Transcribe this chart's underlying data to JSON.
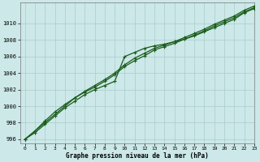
{
  "title": "Graphe pression niveau de la mer (hPa)",
  "background_color": "#cce8e8",
  "grid_color": "#aacccc",
  "line_color": "#1a5c1a",
  "marker_color": "#1a5c1a",
  "xlim": [
    -0.5,
    23
  ],
  "ylim": [
    995.5,
    1012.5
  ],
  "yticks": [
    996,
    998,
    1000,
    1002,
    1004,
    1006,
    1008,
    1010
  ],
  "xticks": [
    0,
    1,
    2,
    3,
    4,
    5,
    6,
    7,
    8,
    9,
    10,
    11,
    12,
    13,
    14,
    15,
    16,
    17,
    18,
    19,
    20,
    21,
    22,
    23
  ],
  "series": [
    [
      996.0,
      996.8,
      997.8,
      998.8,
      999.8,
      1000.6,
      1001.4,
      1002.0,
      1002.5,
      1003.0,
      1006.0,
      1006.5,
      1007.0,
      1007.3,
      1007.5,
      1007.8,
      1008.1,
      1008.5,
      1009.0,
      1009.5,
      1010.0,
      1010.5,
      1011.3,
      1011.8
    ],
    [
      996.0,
      997.0,
      998.2,
      999.3,
      1000.2,
      1001.0,
      1001.8,
      1002.5,
      1003.2,
      1004.0,
      1005.0,
      1005.8,
      1006.4,
      1007.0,
      1007.4,
      1007.8,
      1008.3,
      1008.8,
      1009.3,
      1009.9,
      1010.4,
      1010.9,
      1011.6,
      1012.1
    ],
    [
      996.0,
      997.0,
      998.0,
      999.0,
      1000.0,
      1001.0,
      1001.7,
      1002.3,
      1003.0,
      1003.8,
      1004.8,
      1005.5,
      1006.1,
      1006.8,
      1007.2,
      1007.6,
      1008.1,
      1008.6,
      1009.1,
      1009.7,
      1010.2,
      1010.7,
      1011.4,
      1011.9
    ]
  ]
}
